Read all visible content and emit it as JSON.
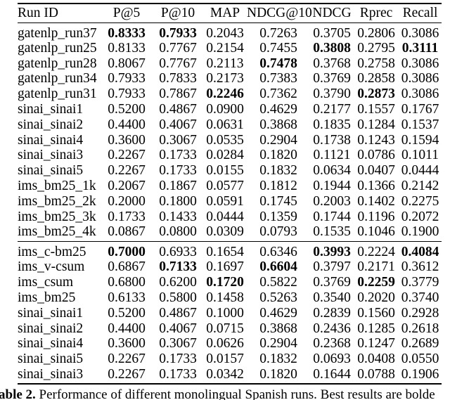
{
  "table": {
    "columns": [
      "Run ID",
      "P@5",
      "P@10",
      "MAP",
      "NDCG@10",
      "NDCG",
      "Rprec",
      "Recall"
    ],
    "sections": [
      {
        "rows": [
          {
            "id": "gatenlp_run37",
            "values": [
              "0.8333",
              "0.7933",
              "0.2043",
              "0.7263",
              "0.3705",
              "0.2806",
              "0.3086"
            ],
            "bold": [
              0,
              1
            ]
          },
          {
            "id": "gatenlp_run25",
            "values": [
              "0.8133",
              "0.7767",
              "0.2154",
              "0.7455",
              "0.3808",
              "0.2795",
              "0.3111"
            ],
            "bold": [
              4,
              6
            ]
          },
          {
            "id": "gatenlp_run28",
            "values": [
              "0.8067",
              "0.7767",
              "0.2113",
              "0.7478",
              "0.3768",
              "0.2758",
              "0.3086"
            ],
            "bold": [
              3
            ]
          },
          {
            "id": "gatenlp_run34",
            "values": [
              "0.7933",
              "0.7833",
              "0.2173",
              "0.7383",
              "0.3769",
              "0.2858",
              "0.3086"
            ],
            "bold": []
          },
          {
            "id": "gatenlp_run31",
            "values": [
              "0.7933",
              "0.7867",
              "0.2246",
              "0.7362",
              "0.3790",
              "0.2873",
              "0.3086"
            ],
            "bold": [
              2,
              5
            ]
          },
          {
            "id": "sinai_sinai1",
            "values": [
              "0.5200",
              "0.4867",
              "0.0900",
              "0.4629",
              "0.2177",
              "0.1557",
              "0.1767"
            ],
            "bold": []
          },
          {
            "id": "sinai_sinai2",
            "values": [
              "0.4400",
              "0.4067",
              "0.0631",
              "0.3868",
              "0.1835",
              "0.1284",
              "0.1537"
            ],
            "bold": []
          },
          {
            "id": "sinai_sinai4",
            "values": [
              "0.3600",
              "0.3067",
              "0.0535",
              "0.2904",
              "0.1738",
              "0.1243",
              "0.1594"
            ],
            "bold": []
          },
          {
            "id": "sinai_sinai3",
            "values": [
              "0.2267",
              "0.1733",
              "0.0284",
              "0.1820",
              "0.1121",
              "0.0786",
              "0.1011"
            ],
            "bold": []
          },
          {
            "id": "sinai_sinai5",
            "values": [
              "0.2267",
              "0.1733",
              "0.0155",
              "0.1832",
              "0.0634",
              "0.0407",
              "0.0444"
            ],
            "bold": []
          },
          {
            "id": "ims_bm25_1k",
            "values": [
              "0.2067",
              "0.1867",
              "0.0577",
              "0.1812",
              "0.1944",
              "0.1366",
              "0.2142"
            ],
            "bold": []
          },
          {
            "id": "ims_bm25_2k",
            "values": [
              "0.2000",
              "0.1800",
              "0.0591",
              "0.1745",
              "0.2003",
              "0.1402",
              "0.2275"
            ],
            "bold": []
          },
          {
            "id": "ims_bm25_3k",
            "values": [
              "0.1733",
              "0.1433",
              "0.0444",
              "0.1359",
              "0.1744",
              "0.1196",
              "0.2072"
            ],
            "bold": []
          },
          {
            "id": "ims_bm25_4k",
            "values": [
              "0.0867",
              "0.0800",
              "0.0309",
              "0.0793",
              "0.1535",
              "0.1046",
              "0.1900"
            ],
            "bold": []
          }
        ]
      },
      {
        "rows": [
          {
            "id": "ims_c-bm25",
            "values": [
              "0.7000",
              "0.6933",
              "0.1654",
              "0.6346",
              "0.3993",
              "0.2224",
              "0.4084"
            ],
            "bold": [
              0,
              4,
              6
            ]
          },
          {
            "id": "ims_v-csum",
            "values": [
              "0.6867",
              "0.7133",
              "0.1697",
              "0.6604",
              "0.3797",
              "0.2171",
              "0.3612"
            ],
            "bold": [
              1,
              3
            ]
          },
          {
            "id": "ims_csum",
            "values": [
              "0.6800",
              "0.6200",
              "0.1720",
              "0.5822",
              "0.3769",
              "0.2259",
              "0.3779"
            ],
            "bold": [
              2,
              5
            ]
          },
          {
            "id": "ims_bm25",
            "values": [
              "0.6133",
              "0.5800",
              "0.1458",
              "0.5263",
              "0.3540",
              "0.2020",
              "0.3740"
            ],
            "bold": []
          },
          {
            "id": "sinai_sinai1",
            "values": [
              "0.5200",
              "0.4867",
              "0.1000",
              "0.4629",
              "0.2839",
              "0.1560",
              "0.2928"
            ],
            "bold": []
          },
          {
            "id": "sinai_sinai2",
            "values": [
              "0.4400",
              "0.4067",
              "0.0715",
              "0.3868",
              "0.2436",
              "0.1285",
              "0.2618"
            ],
            "bold": []
          },
          {
            "id": "sinai_sinai4",
            "values": [
              "0.3600",
              "0.3067",
              "0.0626",
              "0.2904",
              "0.2368",
              "0.1247",
              "0.2689"
            ],
            "bold": []
          },
          {
            "id": "sinai_sinai5",
            "values": [
              "0.2267",
              "0.1733",
              "0.0157",
              "0.1832",
              "0.0693",
              "0.0408",
              "0.0550"
            ],
            "bold": []
          },
          {
            "id": "sinai_sinai3",
            "values": [
              "0.2267",
              "0.1733",
              "0.0342",
              "0.1820",
              "0.1644",
              "0.0788",
              "0.1906"
            ],
            "bold": []
          }
        ]
      }
    ]
  },
  "caption": {
    "label": "able 2.",
    "text": " Performance of different monolingual Spanish runs. Best results are bolde"
  }
}
